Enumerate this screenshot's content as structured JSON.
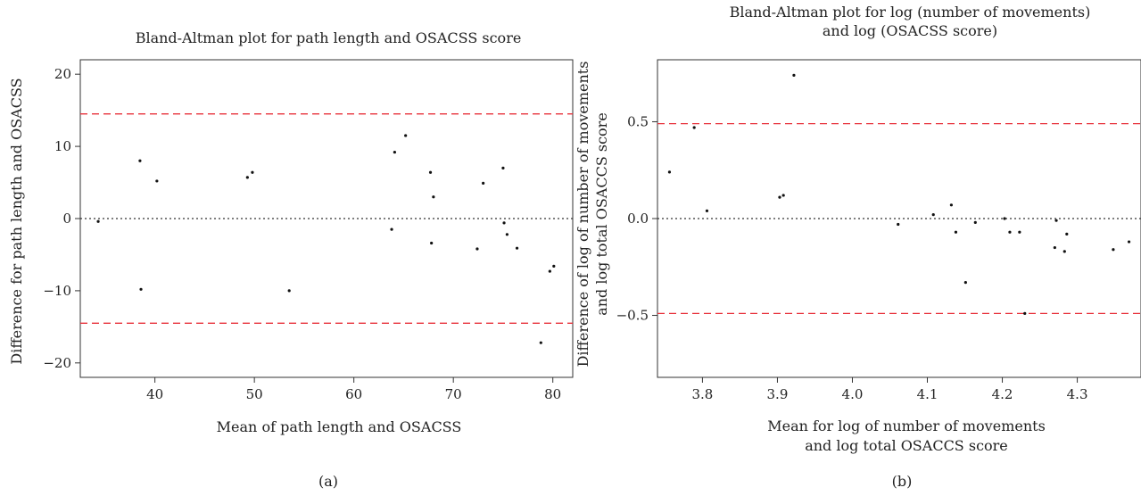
{
  "figure": {
    "panel_labels": [
      "(a)",
      "(b)"
    ]
  },
  "colors": {
    "limit_line": "#e8303a",
    "zero_line": "#333333",
    "points": "#111111",
    "frame": "#333333"
  },
  "chart_data": [
    {
      "type": "scatter",
      "title": "Bland-Altman plot for path length and OSACSS score",
      "title_lines": [
        "Bland-Altman plot for path length and OSACSS score"
      ],
      "xlabel": "Mean of path length and OSACSS",
      "xlabel_lines": [
        "Mean of path length and OSACSS"
      ],
      "ylabel": "Difference for path length and OSACSS",
      "ylabel_lines": [
        "Difference for path length and OSACSS"
      ],
      "xlim": [
        32.5,
        82
      ],
      "ylim": [
        -22,
        22
      ],
      "xticks": [
        40,
        50,
        60,
        70,
        80
      ],
      "xtick_labels": [
        "40",
        "50",
        "60",
        "70",
        "80"
      ],
      "yticks": [
        -20,
        -10,
        0,
        10,
        20
      ],
      "ytick_labels": [
        "−20",
        "−10",
        "0",
        "10",
        "20"
      ],
      "upper_limit": 14.5,
      "lower_limit": -14.5,
      "mean_line": 0,
      "grid": false,
      "points": [
        {
          "x": 34.3,
          "y": -0.4
        },
        {
          "x": 38.5,
          "y": 8.0
        },
        {
          "x": 38.6,
          "y": -9.8
        },
        {
          "x": 40.2,
          "y": 5.2
        },
        {
          "x": 49.3,
          "y": 5.7
        },
        {
          "x": 49.8,
          "y": 6.4
        },
        {
          "x": 53.5,
          "y": -10.0
        },
        {
          "x": 63.8,
          "y": -1.5
        },
        {
          "x": 64.1,
          "y": 9.2
        },
        {
          "x": 65.2,
          "y": 11.5
        },
        {
          "x": 67.7,
          "y": 6.4
        },
        {
          "x": 67.8,
          "y": -3.4
        },
        {
          "x": 68.0,
          "y": 3.0
        },
        {
          "x": 72.4,
          "y": -4.2
        },
        {
          "x": 73.0,
          "y": 4.9
        },
        {
          "x": 75.0,
          "y": 7.0
        },
        {
          "x": 75.1,
          "y": -0.6
        },
        {
          "x": 75.4,
          "y": -2.2
        },
        {
          "x": 76.4,
          "y": -4.1
        },
        {
          "x": 78.8,
          "y": -17.2
        },
        {
          "x": 79.7,
          "y": -7.3
        },
        {
          "x": 80.1,
          "y": -6.6
        }
      ]
    },
    {
      "type": "scatter",
      "title": "Bland-Altman plot for log (number of movements) and log (OSACSS score)",
      "title_lines": [
        "Bland-Altman plot for log (number of movements)",
        "and log (OSACSS score)"
      ],
      "xlabel": "Mean for log of number of movements and log total OSACCS score",
      "xlabel_lines": [
        "Mean for log of number of movements",
        "and log total OSACCS score"
      ],
      "ylabel": "Difference of log of number of movements and log total OSACCS score",
      "ylabel_lines": [
        "Difference of log of number of movements",
        "and log total OSACCS score"
      ],
      "xlim": [
        3.74,
        4.385
      ],
      "ylim": [
        -0.82,
        0.82
      ],
      "xticks": [
        3.8,
        3.9,
        4.0,
        4.1,
        4.2,
        4.3
      ],
      "xtick_labels": [
        "3.8",
        "3.9",
        "4.0",
        "4.1",
        "4.2",
        "4.3"
      ],
      "yticks": [
        -0.5,
        0.0,
        0.5
      ],
      "ytick_labels": [
        "−0.5",
        "0.0",
        "0.5"
      ],
      "upper_limit": 0.49,
      "lower_limit": -0.49,
      "mean_line": 0,
      "grid": false,
      "points": [
        {
          "x": 3.756,
          "y": 0.24
        },
        {
          "x": 3.789,
          "y": 0.47
        },
        {
          "x": 3.806,
          "y": 0.04
        },
        {
          "x": 3.903,
          "y": 0.11
        },
        {
          "x": 3.908,
          "y": 0.12
        },
        {
          "x": 3.922,
          "y": 0.74
        },
        {
          "x": 4.061,
          "y": -0.03
        },
        {
          "x": 4.108,
          "y": 0.02
        },
        {
          "x": 4.132,
          "y": 0.07
        },
        {
          "x": 4.138,
          "y": -0.07
        },
        {
          "x": 4.151,
          "y": -0.33
        },
        {
          "x": 4.164,
          "y": -0.02
        },
        {
          "x": 4.203,
          "y": 0.0
        },
        {
          "x": 4.21,
          "y": -0.07
        },
        {
          "x": 4.223,
          "y": -0.07
        },
        {
          "x": 4.23,
          "y": -0.49
        },
        {
          "x": 4.27,
          "y": -0.15
        },
        {
          "x": 4.272,
          "y": -0.01
        },
        {
          "x": 4.283,
          "y": -0.17
        },
        {
          "x": 4.286,
          "y": -0.08
        },
        {
          "x": 4.348,
          "y": -0.16
        },
        {
          "x": 4.369,
          "y": -0.12
        }
      ]
    }
  ]
}
